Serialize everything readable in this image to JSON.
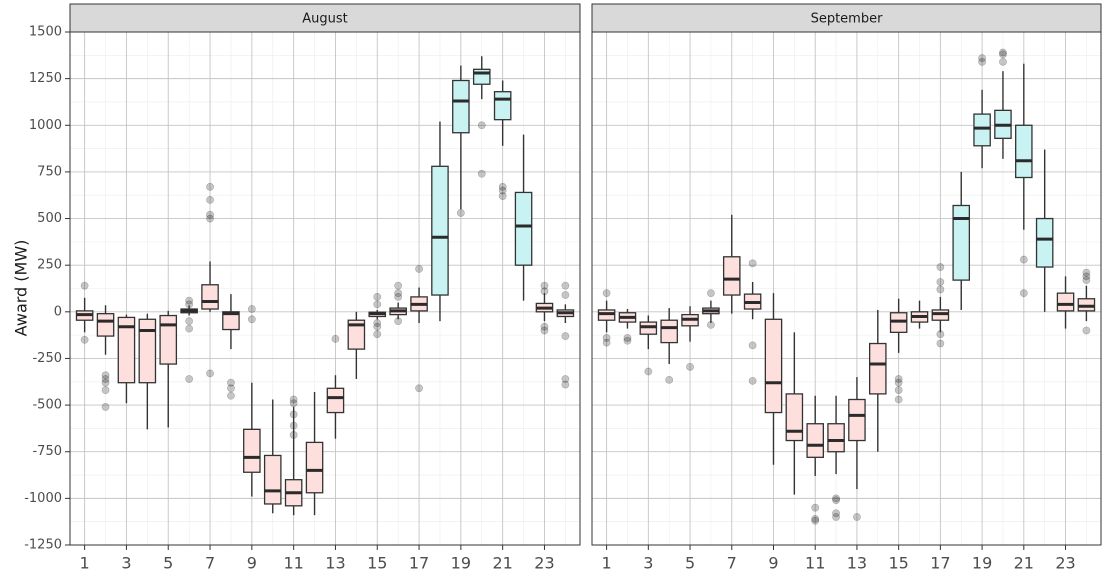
{
  "chart_data": {
    "type": "box",
    "ylabel": "Award (MW)",
    "xlabel": "",
    "ylim": [
      -1250,
      1500
    ],
    "yticks": [
      -1250,
      -1000,
      -750,
      -500,
      -250,
      0,
      250,
      500,
      750,
      1000,
      1250,
      1500
    ],
    "xticks": [
      1,
      3,
      5,
      7,
      9,
      11,
      13,
      15,
      17,
      19,
      21,
      23
    ],
    "grid": true,
    "fill_colors": {
      "negative_median": "#fde0dd",
      "positive_high": "#c9f2f2"
    },
    "panels": [
      {
        "name": "August",
        "boxes": [
          {
            "x": 1,
            "q1": -45,
            "med": -15,
            "q3": 5,
            "lo": -110,
            "hi": 75,
            "out": [
              140,
              -150
            ]
          },
          {
            "x": 2,
            "q1": -130,
            "med": -50,
            "q3": -10,
            "lo": -230,
            "hi": 35,
            "out": [
              -340,
              -360,
              -380,
              -420,
              -510
            ]
          },
          {
            "x": 3,
            "q1": -380,
            "med": -80,
            "q3": -30,
            "lo": -490,
            "hi": -15,
            "out": []
          },
          {
            "x": 4,
            "q1": -380,
            "med": -100,
            "q3": -40,
            "lo": -630,
            "hi": -10,
            "out": []
          },
          {
            "x": 5,
            "q1": -280,
            "med": -70,
            "q3": -20,
            "lo": -620,
            "hi": 5,
            "out": []
          },
          {
            "x": 6,
            "q1": -5,
            "med": 5,
            "q3": 15,
            "lo": -20,
            "hi": 35,
            "out": [
              60,
              40,
              -50,
              -90,
              -360
            ]
          },
          {
            "x": 7,
            "q1": 15,
            "med": 55,
            "q3": 145,
            "lo": 0,
            "hi": 270,
            "out": [
              670,
              600,
              520,
              500,
              -330
            ]
          },
          {
            "x": 8,
            "q1": -95,
            "med": -10,
            "q3": 0,
            "lo": -200,
            "hi": 95,
            "out": [
              -380,
              -410,
              -450
            ]
          },
          {
            "x": 9,
            "q1": -860,
            "med": -780,
            "q3": -630,
            "lo": -990,
            "hi": -380,
            "out": [
              15,
              -40
            ]
          },
          {
            "x": 10,
            "q1": -1030,
            "med": -960,
            "q3": -770,
            "lo": -1080,
            "hi": -470,
            "out": []
          },
          {
            "x": 11,
            "q1": -1040,
            "med": -970,
            "q3": -900,
            "lo": -1090,
            "hi": -510,
            "out": [
              -470,
              -550,
              -610,
              -660,
              -490
            ]
          },
          {
            "x": 12,
            "q1": -970,
            "med": -850,
            "q3": -700,
            "lo": -1090,
            "hi": -430,
            "out": []
          },
          {
            "x": 13,
            "q1": -540,
            "med": -460,
            "q3": -410,
            "lo": -680,
            "hi": -340,
            "out": [
              -145
            ]
          },
          {
            "x": 14,
            "q1": -200,
            "med": -70,
            "q3": -45,
            "lo": -360,
            "hi": 0,
            "out": []
          },
          {
            "x": 15,
            "q1": -25,
            "med": -10,
            "q3": -2,
            "lo": -40,
            "hi": 10,
            "out": [
              80,
              40,
              -60,
              -80,
              -120
            ]
          },
          {
            "x": 16,
            "q1": -15,
            "med": 5,
            "q3": 20,
            "lo": -40,
            "hi": 50,
            "out": [
              140,
              100,
              80,
              -50
            ]
          },
          {
            "x": 17,
            "q1": 5,
            "med": 40,
            "q3": 80,
            "lo": -60,
            "hi": 130,
            "out": [
              230,
              -410
            ]
          },
          {
            "x": 18,
            "q1": 90,
            "med": 400,
            "q3": 780,
            "lo": -50,
            "hi": 1020,
            "out": []
          },
          {
            "x": 19,
            "q1": 960,
            "med": 1130,
            "q3": 1240,
            "lo": 550,
            "hi": 1320,
            "out": [
              530
            ]
          },
          {
            "x": 20,
            "q1": 1220,
            "med": 1280,
            "q3": 1300,
            "lo": 1140,
            "hi": 1370,
            "out": [
              1000,
              740
            ]
          },
          {
            "x": 21,
            "q1": 1030,
            "med": 1140,
            "q3": 1180,
            "lo": 890,
            "hi": 1240,
            "out": [
              670,
              650,
              620
            ]
          },
          {
            "x": 22,
            "q1": 250,
            "med": 460,
            "q3": 640,
            "lo": 60,
            "hi": 950,
            "out": []
          },
          {
            "x": 23,
            "q1": 0,
            "med": 20,
            "q3": 45,
            "lo": -50,
            "hi": 100,
            "out": [
              140,
              110,
              -80,
              -100
            ]
          },
          {
            "x": 24,
            "q1": -25,
            "med": -5,
            "q3": 10,
            "lo": -60,
            "hi": 40,
            "out": [
              140,
              90,
              -130,
              -360,
              -390
            ]
          }
        ]
      },
      {
        "name": "September",
        "boxes": [
          {
            "x": 1,
            "q1": -45,
            "med": -10,
            "q3": 10,
            "lo": -110,
            "hi": 60,
            "out": [
              100,
              -140,
              -165
            ]
          },
          {
            "x": 2,
            "q1": -55,
            "med": -30,
            "q3": -5,
            "lo": -90,
            "hi": 15,
            "out": [
              -140,
              -155
            ]
          },
          {
            "x": 3,
            "q1": -120,
            "med": -80,
            "q3": -55,
            "lo": -200,
            "hi": -20,
            "out": [
              -320
            ]
          },
          {
            "x": 4,
            "q1": -165,
            "med": -85,
            "q3": -45,
            "lo": -280,
            "hi": 20,
            "out": [
              -365
            ]
          },
          {
            "x": 5,
            "q1": -75,
            "med": -40,
            "q3": -15,
            "lo": -160,
            "hi": 30,
            "out": [
              -295
            ]
          },
          {
            "x": 6,
            "q1": -10,
            "med": 5,
            "q3": 20,
            "lo": -60,
            "hi": 60,
            "out": [
              100,
              -70
            ]
          },
          {
            "x": 7,
            "q1": 90,
            "med": 175,
            "q3": 295,
            "lo": -10,
            "hi": 520,
            "out": []
          },
          {
            "x": 8,
            "q1": 15,
            "med": 50,
            "q3": 95,
            "lo": -40,
            "hi": 160,
            "out": [
              260,
              -180,
              -370
            ]
          },
          {
            "x": 9,
            "q1": -540,
            "med": -380,
            "q3": -40,
            "lo": -820,
            "hi": 100,
            "out": []
          },
          {
            "x": 10,
            "q1": -690,
            "med": -640,
            "q3": -440,
            "lo": -980,
            "hi": -110,
            "out": []
          },
          {
            "x": 11,
            "q1": -780,
            "med": -715,
            "q3": -600,
            "lo": -880,
            "hi": -450,
            "out": [
              -1050,
              -1110,
              -1120
            ]
          },
          {
            "x": 12,
            "q1": -750,
            "med": -690,
            "q3": -600,
            "lo": -870,
            "hi": -450,
            "out": [
              -1000,
              -1010,
              -1080,
              -1100
            ]
          },
          {
            "x": 13,
            "q1": -690,
            "med": -555,
            "q3": -470,
            "lo": -950,
            "hi": -350,
            "out": [
              -1100
            ]
          },
          {
            "x": 14,
            "q1": -440,
            "med": -280,
            "q3": -170,
            "lo": -750,
            "hi": 10,
            "out": []
          },
          {
            "x": 15,
            "q1": -110,
            "med": -50,
            "q3": -5,
            "lo": -220,
            "hi": 70,
            "out": [
              -360,
              -380,
              -420,
              -470
            ]
          },
          {
            "x": 16,
            "q1": -55,
            "med": -25,
            "q3": 0,
            "lo": -90,
            "hi": 60,
            "out": []
          },
          {
            "x": 17,
            "q1": -45,
            "med": -10,
            "q3": 10,
            "lo": -110,
            "hi": 80,
            "out": [
              240,
              160,
              120,
              -120,
              -170
            ]
          },
          {
            "x": 18,
            "q1": 170,
            "med": 500,
            "q3": 570,
            "lo": 10,
            "hi": 750,
            "out": []
          },
          {
            "x": 19,
            "q1": 890,
            "med": 985,
            "q3": 1060,
            "lo": 770,
            "hi": 1190,
            "out": [
              1360,
              1340
            ]
          },
          {
            "x": 20,
            "q1": 930,
            "med": 1000,
            "q3": 1080,
            "lo": 820,
            "hi": 1290,
            "out": [
              1380,
              1390,
              1340
            ]
          },
          {
            "x": 21,
            "q1": 720,
            "med": 810,
            "q3": 1000,
            "lo": 440,
            "hi": 1330,
            "out": [
              280,
              100
            ]
          },
          {
            "x": 22,
            "q1": 240,
            "med": 390,
            "q3": 500,
            "lo": 0,
            "hi": 870,
            "out": []
          },
          {
            "x": 23,
            "q1": 5,
            "med": 40,
            "q3": 100,
            "lo": -90,
            "hi": 190,
            "out": []
          },
          {
            "x": 24,
            "q1": 5,
            "med": 30,
            "q3": 70,
            "lo": -50,
            "hi": 140,
            "out": [
              210,
              190,
              170,
              -100
            ]
          }
        ]
      }
    ]
  }
}
